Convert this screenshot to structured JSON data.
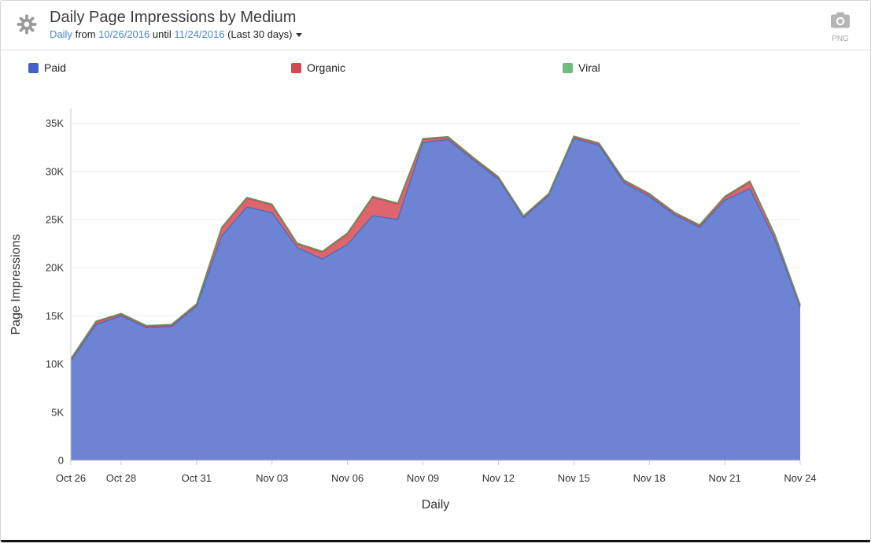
{
  "header": {
    "title": "Daily Page Impressions by Medium",
    "subtitle": {
      "interval": "Daily",
      "from_word": "from",
      "start_date": "10/26/2016",
      "until_word": "until",
      "end_date": "11/24/2016",
      "range_label": "(Last 30 days)"
    },
    "export_label": "PNG"
  },
  "legend": [
    {
      "label": "Paid",
      "color": "#4263c3"
    },
    {
      "label": "Organic",
      "color": "#d4494f"
    },
    {
      "label": "Viral",
      "color": "#72bb80"
    }
  ],
  "chart_data": {
    "type": "area",
    "stacked": true,
    "title": "Daily Page Impressions by Medium",
    "xlabel": "Daily",
    "ylabel": "Page Impressions",
    "ylim": [
      0,
      35000
    ],
    "grid": true,
    "legend_position": "top",
    "x": [
      "Oct 26",
      "Oct 27",
      "Oct 28",
      "Oct 29",
      "Oct 30",
      "Oct 31",
      "Nov 01",
      "Nov 02",
      "Nov 03",
      "Nov 04",
      "Nov 05",
      "Nov 06",
      "Nov 07",
      "Nov 08",
      "Nov 09",
      "Nov 10",
      "Nov 11",
      "Nov 12",
      "Nov 13",
      "Nov 14",
      "Nov 15",
      "Nov 16",
      "Nov 17",
      "Nov 18",
      "Nov 19",
      "Nov 20",
      "Nov 21",
      "Nov 22",
      "Nov 23",
      "Nov 24"
    ],
    "series": [
      {
        "name": "Paid",
        "color": "#6d83d3",
        "line_color": "#4d68b8",
        "values": [
          10300,
          14100,
          15000,
          13800,
          13900,
          16000,
          23300,
          26300,
          25700,
          22100,
          20900,
          22400,
          25400,
          25000,
          33000,
          33300,
          31200,
          29200,
          25200,
          27500,
          33400,
          32700,
          28800,
          27400,
          25500,
          24200,
          27000,
          28200,
          22900,
          15900
        ]
      },
      {
        "name": "Organic",
        "color": "#dc656e",
        "line_color": "#c44d52",
        "values": [
          150,
          250,
          150,
          100,
          100,
          150,
          800,
          900,
          800,
          350,
          700,
          1100,
          1900,
          1600,
          300,
          200,
          150,
          150,
          100,
          100,
          150,
          150,
          200,
          200,
          150,
          150,
          300,
          700,
          400,
          150
        ]
      },
      {
        "name": "Viral",
        "color": "#8bc48f",
        "line_color": "#67945f",
        "values": [
          100,
          100,
          100,
          100,
          100,
          100,
          100,
          100,
          100,
          100,
          100,
          100,
          100,
          100,
          100,
          100,
          100,
          100,
          100,
          100,
          100,
          100,
          100,
          100,
          100,
          100,
          100,
          100,
          100,
          100
        ]
      }
    ],
    "yticks": [
      {
        "value": 0,
        "label": "0"
      },
      {
        "value": 5000,
        "label": "5K"
      },
      {
        "value": 10000,
        "label": "10K"
      },
      {
        "value": 15000,
        "label": "15K"
      },
      {
        "value": 20000,
        "label": "20K"
      },
      {
        "value": 25000,
        "label": "25K"
      },
      {
        "value": 30000,
        "label": "30K"
      },
      {
        "value": 35000,
        "label": "35K"
      }
    ],
    "x_ticks": [
      {
        "index": 0,
        "label": "Oct 26"
      },
      {
        "index": 2,
        "label": "Oct 28"
      },
      {
        "index": 5,
        "label": "Oct 31"
      },
      {
        "index": 8,
        "label": "Nov 03"
      },
      {
        "index": 11,
        "label": "Nov 06"
      },
      {
        "index": 14,
        "label": "Nov 09"
      },
      {
        "index": 17,
        "label": "Nov 12"
      },
      {
        "index": 20,
        "label": "Nov 15"
      },
      {
        "index": 23,
        "label": "Nov 18"
      },
      {
        "index": 26,
        "label": "Nov 21"
      },
      {
        "index": 29,
        "label": "Nov 24"
      }
    ]
  }
}
